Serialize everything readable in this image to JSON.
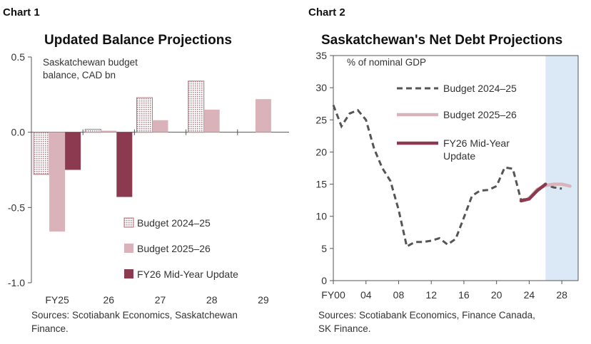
{
  "colors": {
    "budget_2024_25": "#b07a85",
    "budget_2025_26": "#d9b3b9",
    "mid_year": "#8b3a4f",
    "dashed": "#555555",
    "shade": "#dbe8f6"
  },
  "chart_data": [
    {
      "type": "bar",
      "chart_label": "Chart 1",
      "title": "Updated Balance Projections",
      "ylabel": "Saskatchewan budget balance, CAD bn",
      "ylabel_lines": [
        "Saskatchewan budget",
        "balance, CAD bn"
      ],
      "categories": [
        "FY25",
        "26",
        "27",
        "28",
        "29"
      ],
      "ylim": [
        -1.0,
        0.5
      ],
      "yticks": [
        -1.0,
        -0.5,
        0.0,
        0.5
      ],
      "ytick_labels": [
        "-1.0",
        "-0.5",
        "0.0",
        "0.5"
      ],
      "grid": false,
      "legend_position": "bottom-right",
      "series": [
        {
          "name": "Budget 2024–25",
          "values": [
            -0.28,
            0.02,
            0.23,
            0.34,
            null
          ]
        },
        {
          "name": "Budget 2025–26",
          "values": [
            -0.66,
            0.01,
            0.08,
            0.15,
            0.22
          ]
        },
        {
          "name": "FY26 Mid-Year Update",
          "values": [
            -0.25,
            -0.43,
            null,
            null,
            null
          ]
        }
      ],
      "source": "Sources: Scotiabank Economics, Saskatchewan Finance."
    },
    {
      "type": "line",
      "chart_label": "Chart 2",
      "title": "Saskatchewan's Net Debt Projections",
      "ylabel": "% of nominal GDP",
      "xlim": [
        2000,
        2030
      ],
      "ylim": [
        0,
        35
      ],
      "yticks": [
        0,
        5,
        10,
        15,
        20,
        25,
        30,
        35
      ],
      "xticks": [
        2000,
        2004,
        2008,
        2012,
        2016,
        2020,
        2024,
        2028
      ],
      "xtick_labels": [
        "FY00",
        "04",
        "08",
        "12",
        "16",
        "20",
        "24",
        "28"
      ],
      "shaded_from": 2026,
      "grid": false,
      "legend_position": "top-left",
      "series": [
        {
          "name": "Budget 2024–25",
          "x": [
            2000,
            2001,
            2002,
            2003,
            2004,
            2005,
            2006,
            2007,
            2008,
            2009,
            2010,
            2011,
            2012,
            2013,
            2014,
            2015,
            2016,
            2017,
            2018,
            2019,
            2020,
            2021,
            2022,
            2023,
            2024,
            2025,
            2026,
            2027,
            2028
          ],
          "y": [
            27.3,
            24.0,
            26.0,
            26.5,
            25.0,
            20.5,
            17.5,
            15.5,
            11.0,
            5.3,
            6.0,
            6.0,
            6.2,
            6.6,
            5.6,
            6.5,
            9.8,
            13.2,
            14.0,
            14.1,
            14.7,
            17.6,
            17.4,
            12.5,
            12.9,
            14.2,
            14.9,
            14.5,
            14.3
          ]
        },
        {
          "name": "Budget 2025–26",
          "x": [
            2024,
            2025,
            2026,
            2027,
            2028,
            2029
          ],
          "y": [
            12.8,
            14.2,
            14.8,
            15.0,
            15.0,
            14.7
          ]
        },
        {
          "name": "FY26 Mid-Year Update",
          "x": [
            2023,
            2024,
            2025,
            2026
          ],
          "y": [
            12.4,
            12.7,
            14.0,
            15.0
          ]
        }
      ],
      "legend_lines": {
        "budget_2024_25": [
          "Budget 2024–25"
        ],
        "budget_2025_26": [
          "Budget 2025–26"
        ],
        "mid_year": [
          "FY26 Mid-Year",
          "Update"
        ]
      },
      "source": "Sources: Scotiabank Economics, Finance Canada, SK Finance."
    }
  ],
  "footnotes": {
    "chart1_lines": [
      "Sources: Scotiabank Economics, Saskatchewan",
      "Finance."
    ],
    "chart2_lines": [
      "Sources: Scotiabank Economics, Finance Canada,",
      "SK Finance."
    ]
  }
}
